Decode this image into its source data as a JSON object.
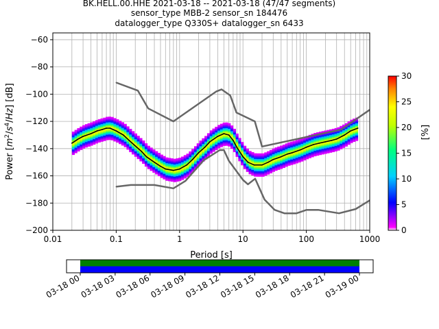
{
  "header": {
    "line1": "BK.HELL.00.HHE   2021-03-18 -- 2021-03-18  (47/47 segments)",
    "line2": "sensor_type MBB-2 sensor_sn 184476",
    "line3": "datalogger_type Q330S+ datalogger_sn 6433"
  },
  "chart_data": [
    {
      "type": "heatmap",
      "title": "",
      "xlabel": "Period [s]",
      "ylabel": "Power [m²/s⁴/Hz] [dB]",
      "xscale": "log",
      "xlim": [
        0.01,
        1000
      ],
      "ylim": [
        -200,
        -55
      ],
      "x_tick_labels": [
        "0.01",
        "0.1",
        "1",
        "10",
        "100",
        "1000"
      ],
      "y_tick_labels": [
        "−60",
        "−80",
        "−100",
        "−120",
        "−140",
        "−160",
        "−180",
        "−200"
      ],
      "grid": true,
      "colorbar": {
        "label": "[%]",
        "range": [
          0,
          30
        ],
        "tick_labels": [
          "0",
          "5",
          "10",
          "15",
          "20",
          "25",
          "30"
        ],
        "colormap": "pqlx"
      },
      "series": [
        {
          "name": "",
          "style": "median",
          "color": "#000000",
          "x": [
            0.02,
            0.025,
            0.03,
            0.04,
            0.05,
            0.06,
            0.07,
            0.08,
            0.1,
            0.13,
            0.16,
            0.2,
            0.25,
            0.3,
            0.4,
            0.5,
            0.6,
            0.8,
            1.0,
            1.3,
            1.6,
            2,
            2.5,
            3,
            4,
            5,
            6,
            7,
            8,
            10,
            12,
            15,
            20,
            25,
            30,
            40,
            50,
            60,
            80,
            100,
            130,
            160,
            200,
            250,
            300,
            400,
            500,
            650
          ],
          "y": [
            -136,
            -133,
            -131,
            -129,
            -127,
            -126,
            -125,
            -125,
            -127,
            -130,
            -134,
            -138,
            -142,
            -146,
            -150,
            -153,
            -155,
            -156,
            -155,
            -152,
            -148,
            -143,
            -139,
            -135,
            -131,
            -129,
            -130,
            -134,
            -139,
            -146,
            -150,
            -152,
            -152,
            -150,
            -148,
            -146,
            -144,
            -143,
            -141,
            -139,
            -137,
            -136,
            -135,
            -134,
            -133,
            -130,
            -127,
            -125
          ]
        },
        {
          "name": "",
          "style": "noise-model-high",
          "color": "#666666",
          "x": [
            0.1,
            0.22,
            0.32,
            0.8,
            3.8,
            4.6,
            6.3,
            7.9,
            15.4,
            20,
            354.8,
            1000
          ],
          "y": [
            -91.5,
            -97.4,
            -110.5,
            -120,
            -98,
            -96.5,
            -101,
            -113.5,
            -120,
            -138.5,
            -126,
            -111.5
          ]
        },
        {
          "name": "",
          "style": "noise-model-low",
          "color": "#666666",
          "x": [
            0.1,
            0.17,
            0.4,
            0.8,
            1.24,
            2.4,
            4.3,
            5,
            6,
            10,
            12,
            15.6,
            21.9,
            31.6,
            45,
            70,
            101,
            154,
            328,
            600,
            1000
          ],
          "y": [
            -168,
            -166.7,
            -166.7,
            -169.2,
            -163.7,
            -148.6,
            -141.1,
            -141.1,
            -149,
            -163,
            -166.2,
            -162.1,
            -177.5,
            -185,
            -187.5,
            -187.5,
            -185,
            -185,
            -187.5,
            -184.4,
            -178
          ]
        }
      ]
    },
    {
      "type": "timeline",
      "title": "",
      "xlim": [
        "2021-03-18 00:00",
        "2021-03-19 00:00"
      ],
      "x_tick_labels": [
        "03-18 00",
        "03-18 03",
        "03-18 06",
        "03-18 09",
        "03-18 12",
        "03-18 15",
        "03-18 18",
        "03-18 21",
        "03-19 00"
      ],
      "bars": [
        {
          "name": "",
          "color": "#008000",
          "start": "2021-03-18 00:00",
          "end": "2021-03-19 00:00"
        },
        {
          "name": "",
          "color": "#0000ff",
          "start": "2021-03-18 00:00",
          "end": "2021-03-19 00:00"
        }
      ]
    }
  ]
}
